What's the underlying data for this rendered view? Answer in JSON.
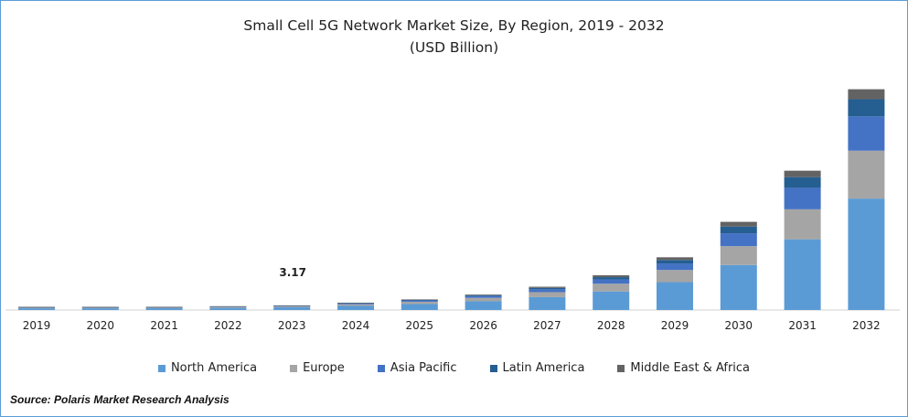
{
  "chart_data": {
    "type": "bar",
    "stacked": true,
    "title": "Small Cell 5G Network Market Size, By Region, 2019 - 2032",
    "subtitle": "(USD Billion)",
    "categories": [
      "2019",
      "2020",
      "2021",
      "2022",
      "2023",
      "2024",
      "2025",
      "2026",
      "2027",
      "2028",
      "2029",
      "2030",
      "2031",
      "2032"
    ],
    "series": [
      {
        "name": "North America",
        "color": "#5b9bd5",
        "values": [
          1.2,
          1.2,
          1.25,
          1.5,
          2.1,
          2.9,
          4.2,
          6.1,
          9.0,
          13.0,
          19.5,
          31.5,
          49.5,
          78.0
        ]
      },
      {
        "name": "Europe",
        "color": "#a5a5a5",
        "values": [
          0.5,
          0.5,
          0.5,
          0.6,
          0.8,
          1.1,
          1.6,
          2.4,
          3.5,
          5.4,
          8.5,
          13.2,
          21.0,
          33.5
        ]
      },
      {
        "name": "Asia Pacific",
        "color": "#4472c4",
        "values": [
          0.3,
          0.3,
          0.3,
          0.35,
          0.15,
          0.6,
          0.9,
          1.3,
          2.0,
          3.0,
          4.6,
          9.0,
          15.0,
          24.0
        ]
      },
      {
        "name": "Latin America",
        "color": "#255e91",
        "values": [
          0.15,
          0.15,
          0.15,
          0.15,
          0.07,
          0.3,
          0.4,
          0.6,
          1.0,
          1.6,
          2.4,
          4.7,
          7.5,
          12.0
        ]
      },
      {
        "name": "Middle East & Africa",
        "color": "#636363",
        "values": [
          0.05,
          0.05,
          0.05,
          0.05,
          0.05,
          0.2,
          0.3,
          0.45,
          0.8,
          1.3,
          1.9,
          3.3,
          4.5,
          7.0
        ]
      }
    ],
    "data_labels": [
      {
        "category": "2023",
        "text": "3.17"
      }
    ],
    "ylim": [
      0,
      160
    ],
    "grid": false,
    "legend": "bottom",
    "xlabel": "",
    "ylabel": ""
  },
  "source": "Source: Polaris  Market Research Analysis"
}
